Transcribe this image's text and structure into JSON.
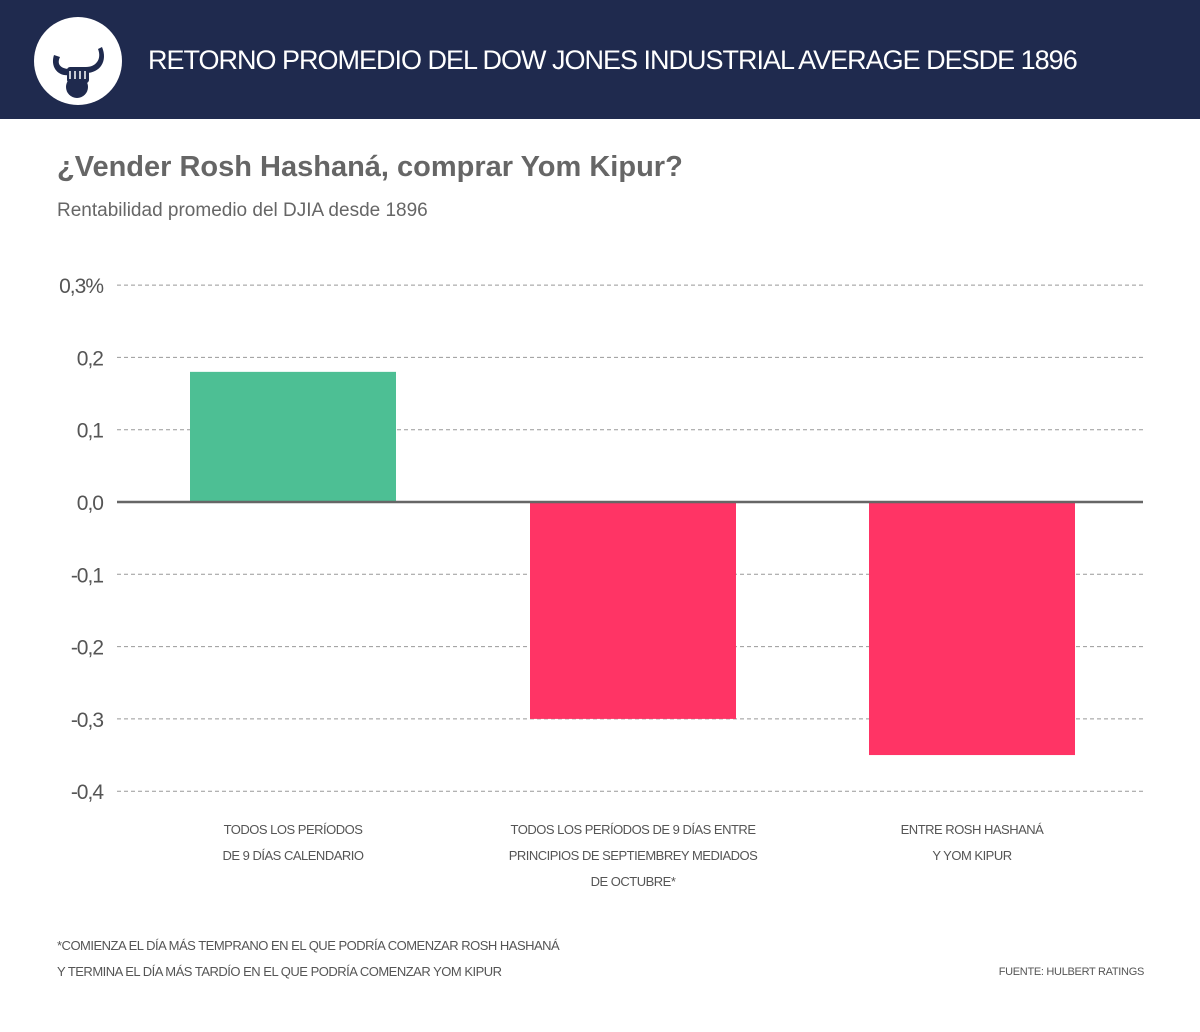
{
  "header": {
    "title": "RETORNO PROMEDIO DEL DOW JONES INDUSTRIAL AVERAGE DESDE 1896"
  },
  "colors": {
    "header_bg": "#1f2a4e",
    "positive": "#4dbf94",
    "negative": "#ff3465",
    "text": "#666666"
  },
  "chart_data": {
    "type": "bar",
    "title": "¿Vender Rosh Hashaná, comprar Yom Kipur?",
    "subtitle": "Rentabilidad promedio del DJIA desde 1896",
    "categories": [
      [
        "TODOS LOS PERÍODOS",
        "DE 9 DÍAS CALENDARIO"
      ],
      [
        "TODOS LOS PERÍODOS DE 9 DÍAS ENTRE",
        "PRINCIPIOS DE SEPTIEMBREY MEDIADOS",
        "DE OCTUBRE*"
      ],
      [
        "ENTRE ROSH HASHANÁ",
        "Y YOM KIPUR"
      ]
    ],
    "values": [
      0.18,
      -0.3,
      -0.35
    ],
    "ylim": [
      -0.4,
      0.3
    ],
    "yticks": [
      0.3,
      0.2,
      0.1,
      0.0,
      -0.1,
      -0.2,
      -0.3,
      -0.4
    ],
    "ytick_labels": [
      "0,3%",
      "0,2",
      "0,1",
      "0,0",
      "-0,1",
      "-0,2",
      "-0,3",
      "-0,4"
    ],
    "grid": true,
    "xlabel": "",
    "ylabel": ""
  },
  "footer": {
    "note_lines": [
      "*COMIENZA EL DÍA MÁS TEMPRANO EN EL QUE PODRÍA COMENZAR ROSH HASHANÁ",
      "Y TERMINA EL DÍA MÁS TARDÍO EN EL QUE PODRÍA COMENZAR YOM KIPUR"
    ],
    "source": "FUENTE: HULBERT RATINGS"
  }
}
